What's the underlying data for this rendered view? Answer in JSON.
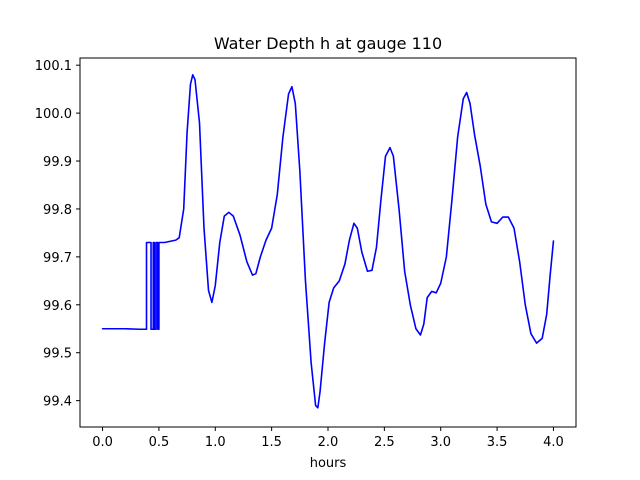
{
  "chart_data": {
    "type": "line",
    "title": "Water Depth h at gauge 110",
    "xlabel": "hours",
    "ylabel": "",
    "xlim": [
      -0.2,
      4.2
    ],
    "ylim": [
      99.345,
      100.115
    ],
    "xticks": [
      0.0,
      0.5,
      1.0,
      1.5,
      2.0,
      2.5,
      3.0,
      3.5,
      4.0
    ],
    "xtick_labels": [
      "0.0",
      "0.5",
      "1.0",
      "1.5",
      "2.0",
      "2.5",
      "3.0",
      "3.5",
      "4.0"
    ],
    "yticks": [
      99.4,
      99.5,
      99.6,
      99.7,
      99.8,
      99.9,
      100.0,
      100.1
    ],
    "ytick_labels": [
      "99.4",
      "99.5",
      "99.6",
      "99.7",
      "99.8",
      "99.9",
      "100.0",
      "100.1"
    ],
    "grid": false,
    "series": [
      {
        "name": "",
        "color": "#0000ff",
        "points": [
          [
            0.0,
            99.55
          ],
          [
            0.2,
            99.55
          ],
          [
            0.33,
            99.549
          ],
          [
            0.39,
            99.549
          ],
          [
            0.39,
            99.73
          ],
          [
            0.43,
            99.73
          ],
          [
            0.43,
            99.549
          ],
          [
            0.45,
            99.549
          ],
          [
            0.45,
            99.73
          ],
          [
            0.46,
            99.73
          ],
          [
            0.46,
            99.549
          ],
          [
            0.475,
            99.549
          ],
          [
            0.475,
            99.73
          ],
          [
            0.49,
            99.73
          ],
          [
            0.49,
            99.549
          ],
          [
            0.5,
            99.549
          ],
          [
            0.5,
            99.73
          ],
          [
            0.55,
            99.73
          ],
          [
            0.65,
            99.735
          ],
          [
            0.68,
            99.74
          ],
          [
            0.72,
            99.8
          ],
          [
            0.75,
            99.96
          ],
          [
            0.78,
            100.06
          ],
          [
            0.8,
            100.08
          ],
          [
            0.82,
            100.07
          ],
          [
            0.86,
            99.98
          ],
          [
            0.9,
            99.76
          ],
          [
            0.94,
            99.63
          ],
          [
            0.97,
            99.605
          ],
          [
            1.0,
            99.64
          ],
          [
            1.04,
            99.73
          ],
          [
            1.08,
            99.785
          ],
          [
            1.12,
            99.793
          ],
          [
            1.16,
            99.785
          ],
          [
            1.22,
            99.745
          ],
          [
            1.28,
            99.69
          ],
          [
            1.33,
            99.662
          ],
          [
            1.36,
            99.665
          ],
          [
            1.4,
            99.7
          ],
          [
            1.45,
            99.735
          ],
          [
            1.5,
            99.76
          ],
          [
            1.55,
            99.83
          ],
          [
            1.6,
            99.95
          ],
          [
            1.65,
            100.04
          ],
          [
            1.68,
            100.055
          ],
          [
            1.71,
            100.02
          ],
          [
            1.75,
            99.88
          ],
          [
            1.8,
            99.65
          ],
          [
            1.85,
            99.48
          ],
          [
            1.89,
            99.39
          ],
          [
            1.91,
            99.385
          ],
          [
            1.93,
            99.42
          ],
          [
            1.97,
            99.52
          ],
          [
            2.01,
            99.605
          ],
          [
            2.05,
            99.635
          ],
          [
            2.1,
            99.65
          ],
          [
            2.15,
            99.685
          ],
          [
            2.19,
            99.735
          ],
          [
            2.23,
            99.77
          ],
          [
            2.26,
            99.76
          ],
          [
            2.3,
            99.71
          ],
          [
            2.35,
            99.67
          ],
          [
            2.39,
            99.672
          ],
          [
            2.43,
            99.72
          ],
          [
            2.47,
            99.82
          ],
          [
            2.51,
            99.91
          ],
          [
            2.55,
            99.928
          ],
          [
            2.58,
            99.91
          ],
          [
            2.63,
            99.8
          ],
          [
            2.68,
            99.67
          ],
          [
            2.73,
            99.6
          ],
          [
            2.78,
            99.55
          ],
          [
            2.82,
            99.537
          ],
          [
            2.85,
            99.56
          ],
          [
            2.88,
            99.615
          ],
          [
            2.92,
            99.628
          ],
          [
            2.96,
            99.625
          ],
          [
            3.0,
            99.645
          ],
          [
            3.05,
            99.7
          ],
          [
            3.1,
            99.82
          ],
          [
            3.15,
            99.95
          ],
          [
            3.2,
            100.03
          ],
          [
            3.23,
            100.043
          ],
          [
            3.26,
            100.02
          ],
          [
            3.3,
            99.955
          ],
          [
            3.35,
            99.89
          ],
          [
            3.4,
            99.81
          ],
          [
            3.45,
            99.773
          ],
          [
            3.5,
            99.77
          ],
          [
            3.55,
            99.783
          ],
          [
            3.6,
            99.783
          ],
          [
            3.65,
            99.76
          ],
          [
            3.7,
            99.69
          ],
          [
            3.75,
            99.6
          ],
          [
            3.8,
            99.54
          ],
          [
            3.85,
            99.52
          ],
          [
            3.9,
            99.53
          ],
          [
            3.94,
            99.58
          ],
          [
            3.97,
            99.66
          ],
          [
            4.0,
            99.733
          ]
        ]
      }
    ]
  }
}
